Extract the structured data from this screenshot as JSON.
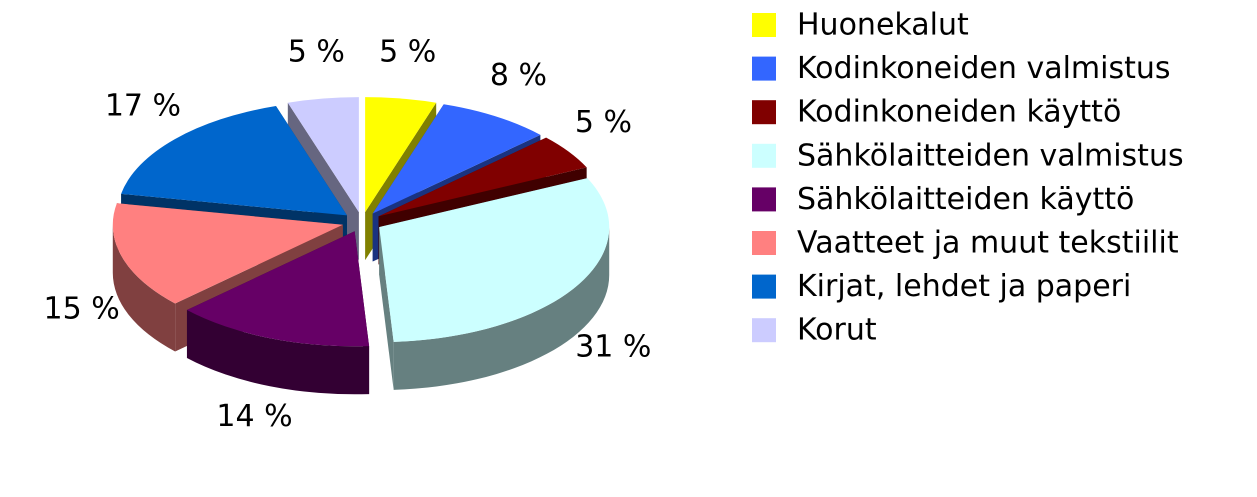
{
  "chart_data": {
    "type": "pie3d",
    "categories": [
      "Huonekalut",
      "Kodinkoneiden valmistus",
      "Kodinkoneiden käyttö",
      "Sähkölaitteiden valmistus",
      "Sähkölaitteiden käyttö",
      "Vaatteet ja muut tekstiilit",
      "Kirjat, lehdet ja paperi",
      "Korut"
    ],
    "values": [
      5,
      8,
      5,
      31,
      14,
      15,
      17,
      5
    ],
    "value_labels": [
      "5 %",
      "8 %",
      "5 %",
      "31 %",
      "14 %",
      "15 %",
      "17 %",
      "5 %"
    ],
    "colors": [
      "#ffff00",
      "#3366ff",
      "#800000",
      "#ccffff",
      "#660066",
      "#ff8080",
      "#0066cc",
      "#ccccff"
    ],
    "legend": "right"
  }
}
